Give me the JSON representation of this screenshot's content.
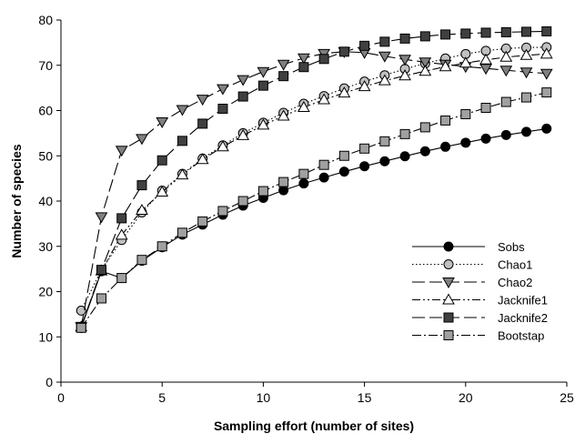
{
  "chart_data": {
    "type": "line",
    "xlabel": "Sampling effort (number of sites)",
    "ylabel": "Number of species",
    "xlim": [
      0,
      25
    ],
    "ylim": [
      0,
      80
    ],
    "xticks": [
      0,
      5,
      10,
      15,
      20,
      25
    ],
    "yticks": [
      0,
      10,
      20,
      30,
      40,
      50,
      60,
      70,
      80
    ],
    "grid": false,
    "legend_position": "bottom-right",
    "x": [
      1,
      2,
      3,
      4,
      5,
      6,
      7,
      8,
      9,
      10,
      11,
      12,
      13,
      14,
      15,
      16,
      17,
      18,
      19,
      20,
      21,
      22,
      23,
      24
    ],
    "series": [
      {
        "name": "Sobs",
        "marker": "circle",
        "marker_fill": "#000000",
        "line_style": "solid",
        "values": [
          12,
          24.5,
          23,
          26.8,
          29.8,
          32.6,
          34.8,
          37,
          39,
          40.7,
          42.4,
          43.9,
          45.2,
          46.5,
          47.7,
          48.8,
          49.9,
          51,
          52,
          52.9,
          53.8,
          54.6,
          55.3,
          56
        ]
      },
      {
        "name": "Chao1",
        "marker": "circle",
        "marker_fill": "#c0c0c0",
        "line_style": "dotted",
        "values": [
          15.8,
          24.8,
          31.4,
          37.5,
          42.3,
          46,
          49.4,
          52.3,
          55,
          57.3,
          59.5,
          61.5,
          63.2,
          64.9,
          66.4,
          67.8,
          69.2,
          70.4,
          71.5,
          72.5,
          73.2,
          73.7,
          73.9,
          74
        ]
      },
      {
        "name": "Chao2",
        "marker": "triangle-down",
        "marker_fill": "#808080",
        "line_style": "long-dash",
        "values": [
          12.2,
          36.5,
          51.2,
          53.8,
          57.5,
          60.2,
          62.5,
          64.8,
          66.8,
          68.6,
          70.2,
          71.6,
          72.6,
          73,
          72.8,
          72,
          71.3,
          70.7,
          70.2,
          69.7,
          69.3,
          68.9,
          68.5,
          68.2
        ]
      },
      {
        "name": "Jacknife1",
        "marker": "triangle-up",
        "marker_fill": "#ffffff",
        "line_style": "dash-dot-dot",
        "values": [
          12.2,
          24.6,
          32.5,
          38,
          42,
          45.8,
          49.2,
          52,
          54.5,
          56.8,
          58.8,
          60.7,
          62.4,
          63.9,
          65.3,
          66.6,
          67.7,
          68.7,
          69.7,
          70.5,
          71.2,
          71.8,
          72.2,
          72.5
        ]
      },
      {
        "name": "Jacknife2",
        "marker": "square",
        "marker_fill": "#404040",
        "line_style": "long-dash",
        "values": [
          12.2,
          24.8,
          36.2,
          43.5,
          49,
          53.3,
          57.1,
          60.4,
          63.1,
          65.5,
          67.6,
          69.6,
          71.4,
          73,
          74.3,
          75.2,
          75.9,
          76.4,
          76.8,
          77,
          77.2,
          77.3,
          77.4,
          77.5
        ]
      },
      {
        "name": "Bootstap",
        "marker": "square",
        "marker_fill": "#a0a0a0",
        "line_style": "dash-dot",
        "values": [
          12,
          18.5,
          23,
          27,
          30,
          33,
          35.5,
          37.8,
          40,
          42.2,
          44.2,
          46,
          48,
          50,
          51.6,
          53.2,
          54.8,
          56.3,
          57.8,
          59.2,
          60.6,
          61.9,
          62.9,
          64
        ]
      }
    ]
  }
}
